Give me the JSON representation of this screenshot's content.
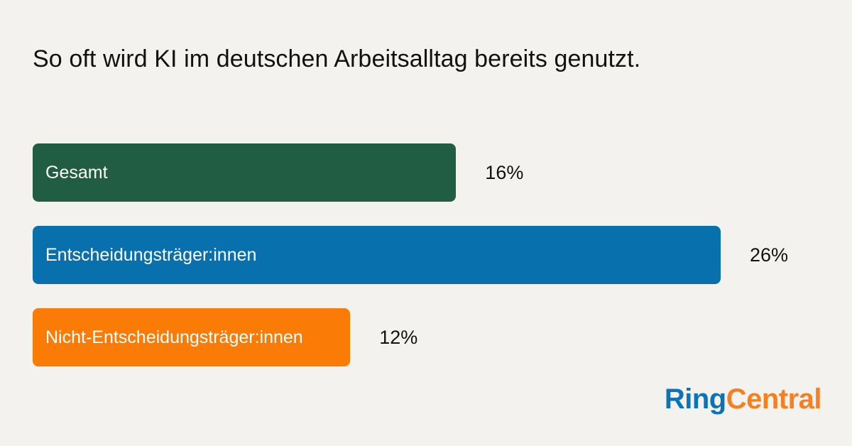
{
  "chart_data": {
    "type": "bar",
    "orientation": "horizontal",
    "title": "So oft wird KI im deutschen Arbeitsalltag bereits genutzt.",
    "categories": [
      "Gesamt",
      "Entscheidungsträger:innen",
      "Nicht-Entscheidungsträger:innen"
    ],
    "values": [
      16,
      26,
      12
    ],
    "value_labels": [
      "16%",
      "26%",
      "12%"
    ],
    "colors": [
      "#215d42",
      "#0870ad",
      "#fb7b07"
    ],
    "xlim": [
      0,
      28
    ],
    "grid": false,
    "legend": "none"
  },
  "logo": {
    "part1": "Ring",
    "part2": "Central",
    "colors": [
      "#0b74b8",
      "#f6801f"
    ]
  }
}
